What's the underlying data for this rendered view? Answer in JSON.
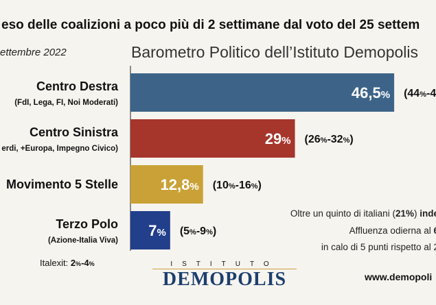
{
  "header": {
    "headline": "eso delle coalizioni a poco più di 2 settimane dal voto del 25 settem",
    "date": "ettembre 2022",
    "subtitle": "Barometro Politico dell’Istituto Demopolis"
  },
  "chart_data": {
    "type": "bar",
    "orientation": "horizontal",
    "xlim": [
      0,
      100
    ],
    "categories": [
      {
        "name": "Centro Destra",
        "sub": "(FdI, Lega, FI, Noi Moderati)",
        "value": 46.5,
        "value_label": "46,5",
        "range_label": [
          "44",
          "4"
        ],
        "color": "#3d6488"
      },
      {
        "name": "Centro Sinistra",
        "sub": "erdi, +Europa, Impegno Civico)",
        "value": 29,
        "value_label": "29",
        "range_label": [
          "26",
          "32"
        ],
        "color": "#a6352c"
      },
      {
        "name": "Movimento 5 Stelle",
        "sub": "",
        "value": 12.8,
        "value_label": "12,8",
        "range_label": [
          "10",
          "16"
        ],
        "color": "#c9a136"
      },
      {
        "name": "Terzo Polo",
        "sub": "(Azione-Italia Viva)",
        "value": 7,
        "value_label": "7",
        "range_label": [
          "5",
          "9"
        ],
        "color": "#223f8c"
      }
    ]
  },
  "italexit": {
    "label": "Italexit:",
    "low": "2",
    "high": "4"
  },
  "notes": {
    "line1_a": "Oltre un quinto di italiani (",
    "line1_b": "21%",
    "line1_c": ") ",
    "line1_d": "inde",
    "line2_a": "Affluenza odierna al ",
    "line2_b": "6",
    "line3": "in calo di 5 punti rispetto al 2"
  },
  "logo": {
    "top": "ISTITUTO",
    "main": "DEMOPOLIS"
  },
  "website": "www.demopoli"
}
